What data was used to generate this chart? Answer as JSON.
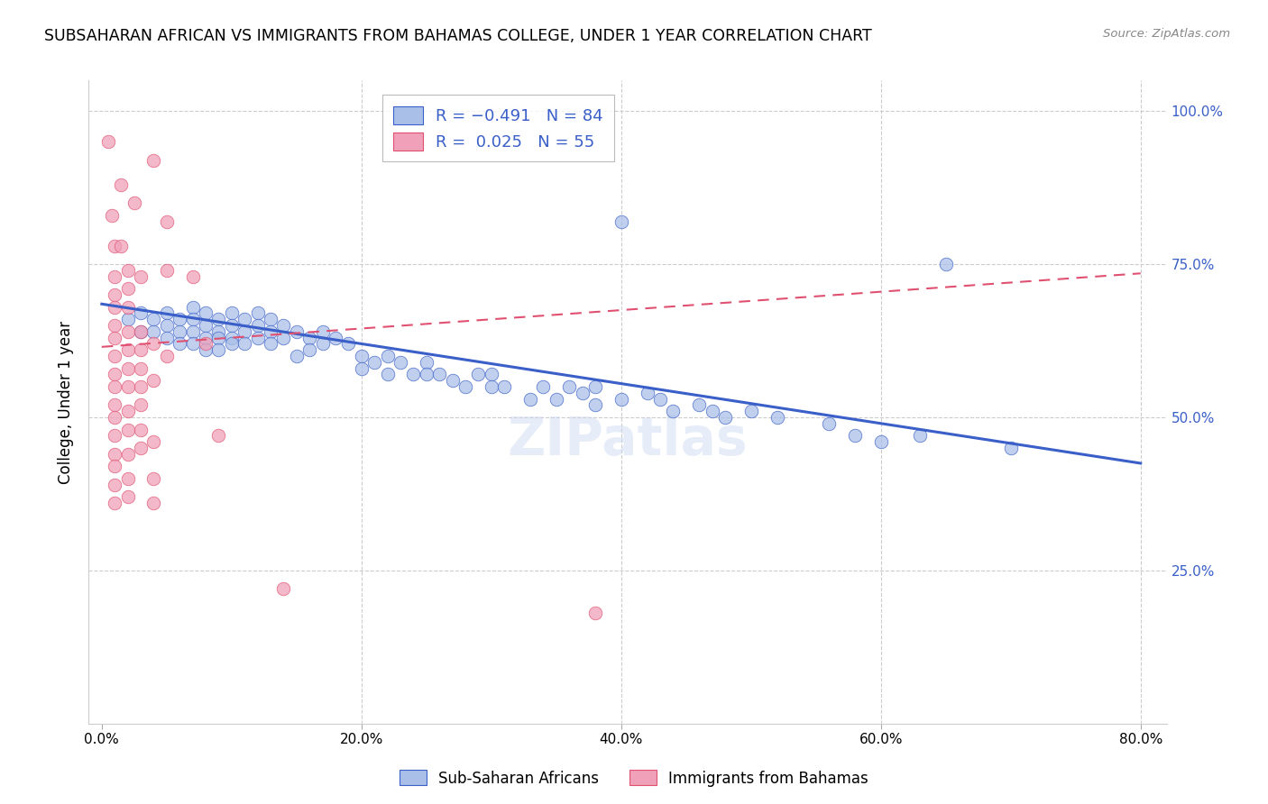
{
  "title": "SUBSAHARAN AFRICAN VS IMMIGRANTS FROM BAHAMAS COLLEGE, UNDER 1 YEAR CORRELATION CHART",
  "source": "Source: ZipAtlas.com",
  "ylabel": "College, Under 1 year",
  "x_tick_labels": [
    "0.0%",
    "",
    "20.0%",
    "",
    "40.0%",
    "",
    "60.0%",
    "",
    "80.0%"
  ],
  "x_tick_vals": [
    0.0,
    0.1,
    0.2,
    0.3,
    0.4,
    0.5,
    0.6,
    0.7,
    0.8
  ],
  "x_tick_labels_show": [
    "0.0%",
    "20.0%",
    "40.0%",
    "60.0%",
    "80.0%"
  ],
  "x_tick_vals_show": [
    0.0,
    0.2,
    0.4,
    0.6,
    0.8
  ],
  "y_tick_labels_right": [
    "100.0%",
    "75.0%",
    "50.0%",
    "25.0%"
  ],
  "y_tick_vals": [
    1.0,
    0.75,
    0.5,
    0.25
  ],
  "xlim": [
    -0.01,
    0.82
  ],
  "ylim": [
    0.0,
    1.05
  ],
  "watermark": "ZIPatlas",
  "blue_color": "#3a5fc8",
  "pink_color": "#e05070",
  "scatter_blue_color": "#aabfe8",
  "scatter_pink_color": "#f0a0b8",
  "title_fontsize": 12.5,
  "axis_label_fontsize": 12,
  "tick_fontsize": 11,
  "blue_scatter": [
    [
      0.02,
      0.66
    ],
    [
      0.03,
      0.67
    ],
    [
      0.03,
      0.64
    ],
    [
      0.04,
      0.66
    ],
    [
      0.04,
      0.64
    ],
    [
      0.05,
      0.67
    ],
    [
      0.05,
      0.65
    ],
    [
      0.05,
      0.63
    ],
    [
      0.06,
      0.66
    ],
    [
      0.06,
      0.64
    ],
    [
      0.06,
      0.62
    ],
    [
      0.07,
      0.68
    ],
    [
      0.07,
      0.66
    ],
    [
      0.07,
      0.64
    ],
    [
      0.07,
      0.62
    ],
    [
      0.08,
      0.67
    ],
    [
      0.08,
      0.65
    ],
    [
      0.08,
      0.63
    ],
    [
      0.08,
      0.61
    ],
    [
      0.09,
      0.66
    ],
    [
      0.09,
      0.64
    ],
    [
      0.09,
      0.63
    ],
    [
      0.09,
      0.61
    ],
    [
      0.1,
      0.67
    ],
    [
      0.1,
      0.65
    ],
    [
      0.1,
      0.63
    ],
    [
      0.1,
      0.62
    ],
    [
      0.11,
      0.66
    ],
    [
      0.11,
      0.64
    ],
    [
      0.11,
      0.62
    ],
    [
      0.12,
      0.67
    ],
    [
      0.12,
      0.65
    ],
    [
      0.12,
      0.63
    ],
    [
      0.13,
      0.66
    ],
    [
      0.13,
      0.64
    ],
    [
      0.13,
      0.62
    ],
    [
      0.14,
      0.65
    ],
    [
      0.14,
      0.63
    ],
    [
      0.15,
      0.64
    ],
    [
      0.15,
      0.6
    ],
    [
      0.16,
      0.63
    ],
    [
      0.16,
      0.61
    ],
    [
      0.17,
      0.64
    ],
    [
      0.17,
      0.62
    ],
    [
      0.18,
      0.63
    ],
    [
      0.19,
      0.62
    ],
    [
      0.2,
      0.6
    ],
    [
      0.2,
      0.58
    ],
    [
      0.21,
      0.59
    ],
    [
      0.22,
      0.6
    ],
    [
      0.22,
      0.57
    ],
    [
      0.23,
      0.59
    ],
    [
      0.24,
      0.57
    ],
    [
      0.25,
      0.59
    ],
    [
      0.25,
      0.57
    ],
    [
      0.26,
      0.57
    ],
    [
      0.27,
      0.56
    ],
    [
      0.28,
      0.55
    ],
    [
      0.29,
      0.57
    ],
    [
      0.3,
      0.57
    ],
    [
      0.3,
      0.55
    ],
    [
      0.31,
      0.55
    ],
    [
      0.33,
      0.53
    ],
    [
      0.34,
      0.55
    ],
    [
      0.35,
      0.53
    ],
    [
      0.36,
      0.55
    ],
    [
      0.37,
      0.54
    ],
    [
      0.38,
      0.55
    ],
    [
      0.38,
      0.52
    ],
    [
      0.4,
      0.82
    ],
    [
      0.4,
      0.53
    ],
    [
      0.42,
      0.54
    ],
    [
      0.43,
      0.53
    ],
    [
      0.44,
      0.51
    ],
    [
      0.46,
      0.52
    ],
    [
      0.47,
      0.51
    ],
    [
      0.48,
      0.5
    ],
    [
      0.5,
      0.51
    ],
    [
      0.52,
      0.5
    ],
    [
      0.56,
      0.49
    ],
    [
      0.58,
      0.47
    ],
    [
      0.6,
      0.46
    ],
    [
      0.63,
      0.47
    ],
    [
      0.65,
      0.75
    ],
    [
      0.7,
      0.45
    ]
  ],
  "pink_scatter": [
    [
      0.005,
      0.95
    ],
    [
      0.008,
      0.83
    ],
    [
      0.01,
      0.78
    ],
    [
      0.01,
      0.73
    ],
    [
      0.01,
      0.7
    ],
    [
      0.01,
      0.68
    ],
    [
      0.01,
      0.65
    ],
    [
      0.01,
      0.63
    ],
    [
      0.01,
      0.6
    ],
    [
      0.01,
      0.57
    ],
    [
      0.01,
      0.55
    ],
    [
      0.01,
      0.52
    ],
    [
      0.01,
      0.5
    ],
    [
      0.01,
      0.47
    ],
    [
      0.01,
      0.44
    ],
    [
      0.01,
      0.42
    ],
    [
      0.01,
      0.39
    ],
    [
      0.01,
      0.36
    ],
    [
      0.015,
      0.88
    ],
    [
      0.015,
      0.78
    ],
    [
      0.02,
      0.74
    ],
    [
      0.02,
      0.71
    ],
    [
      0.02,
      0.68
    ],
    [
      0.02,
      0.64
    ],
    [
      0.02,
      0.61
    ],
    [
      0.02,
      0.58
    ],
    [
      0.02,
      0.55
    ],
    [
      0.02,
      0.51
    ],
    [
      0.02,
      0.48
    ],
    [
      0.02,
      0.44
    ],
    [
      0.02,
      0.4
    ],
    [
      0.02,
      0.37
    ],
    [
      0.025,
      0.85
    ],
    [
      0.03,
      0.73
    ],
    [
      0.03,
      0.64
    ],
    [
      0.03,
      0.61
    ],
    [
      0.03,
      0.58
    ],
    [
      0.03,
      0.55
    ],
    [
      0.03,
      0.52
    ],
    [
      0.03,
      0.48
    ],
    [
      0.03,
      0.45
    ],
    [
      0.04,
      0.92
    ],
    [
      0.04,
      0.62
    ],
    [
      0.04,
      0.56
    ],
    [
      0.04,
      0.46
    ],
    [
      0.04,
      0.4
    ],
    [
      0.04,
      0.36
    ],
    [
      0.05,
      0.82
    ],
    [
      0.05,
      0.74
    ],
    [
      0.05,
      0.6
    ],
    [
      0.07,
      0.73
    ],
    [
      0.08,
      0.62
    ],
    [
      0.09,
      0.47
    ],
    [
      0.14,
      0.22
    ],
    [
      0.38,
      0.18
    ]
  ],
  "blue_line": {
    "x_start": 0.0,
    "y_start": 0.685,
    "x_end": 0.8,
    "y_end": 0.425
  },
  "pink_line": {
    "x_start": 0.0,
    "y_start": 0.615,
    "x_end": 0.8,
    "y_end": 0.735
  }
}
